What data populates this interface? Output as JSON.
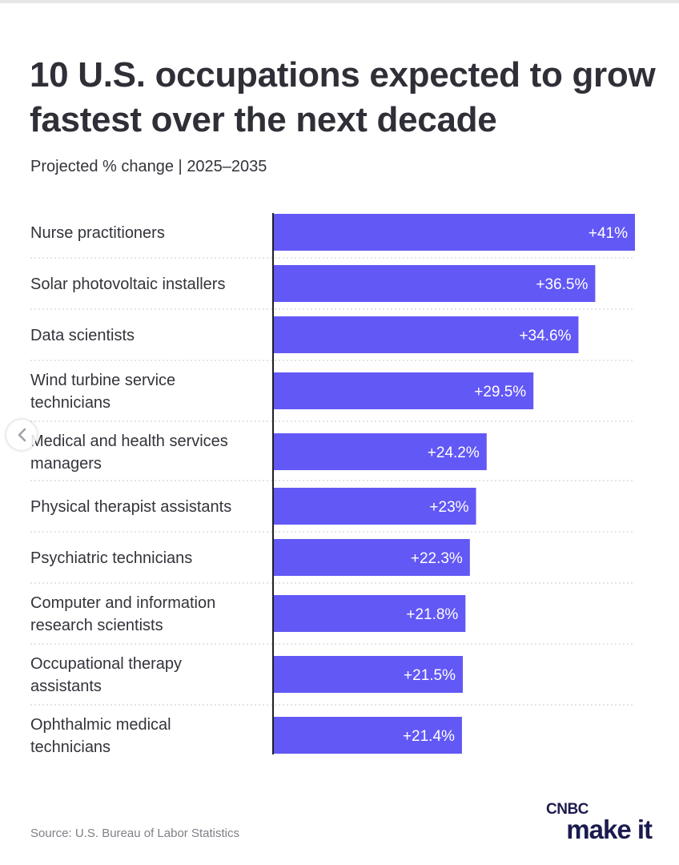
{
  "header": {
    "title": "10 U.S. occupations expected to grow fastest over the next decade",
    "subtitle": "Projected % change | 2025–2035"
  },
  "footer": {
    "source": "Source: U.S. Bureau of Labor Statistics",
    "logo_top": "CNBC",
    "logo_bottom": "make it"
  },
  "colors": {
    "bar": "#6258f5",
    "bar_label": "#ffffff",
    "category_label": "#33333b",
    "divider": "#c9c9cf",
    "axis": "#1f1f27"
  },
  "chart_data": {
    "type": "bar",
    "orientation": "horizontal",
    "categories": [
      [
        "Nurse practitioners"
      ],
      [
        "Solar photovoltaic installers"
      ],
      [
        "Data scientists"
      ],
      [
        "Wind turbine service",
        "technicians"
      ],
      [
        "Medical and health services",
        "managers"
      ],
      [
        "Physical therapist assistants"
      ],
      [
        "Psychiatric technicians"
      ],
      [
        "Computer and information",
        "research scientists"
      ],
      [
        "Occupational therapy",
        "assistants"
      ],
      [
        "Ophthalmic medical",
        "technicians"
      ]
    ],
    "values": [
      41,
      36.5,
      34.6,
      29.5,
      24.2,
      23,
      22.3,
      21.8,
      21.5,
      21.4
    ],
    "data_labels": [
      "+41%",
      "+36.5%",
      "+34.6%",
      "+29.5%",
      "+24.2%",
      "+23%",
      "+22.3%",
      "+21.8%",
      "+21.5%",
      "+21.4%"
    ],
    "xlim": [
      0,
      41
    ],
    "grid": false,
    "legend": "none"
  }
}
